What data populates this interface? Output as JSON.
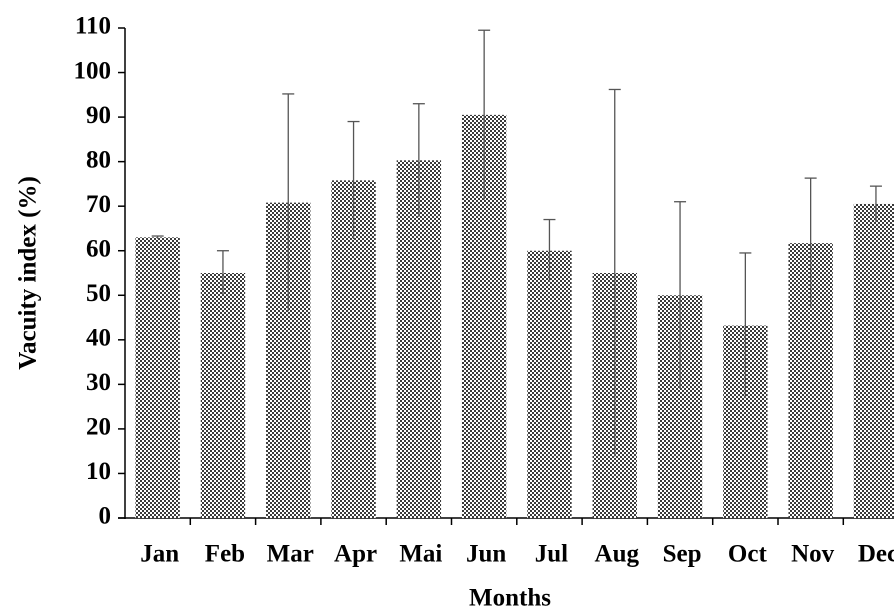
{
  "chart_data": {
    "type": "bar",
    "x_label": "Months",
    "y_label": "Vacuity index (%)",
    "categories": [
      "Jan",
      "Feb",
      "Mar",
      "Apr",
      "Mai",
      "Jun",
      "Jul",
      "Aug",
      "Sep",
      "Oct",
      "Nov",
      "Dec"
    ],
    "values": [
      63,
      55,
      70.8,
      75.8,
      80.3,
      90.5,
      60,
      55,
      50,
      43.2,
      61.7,
      70.5
    ],
    "errors": [
      0.3,
      5,
      24.4,
      13.2,
      12.7,
      19,
      7,
      41.2,
      21,
      16.3,
      14.6,
      4
    ],
    "color": "#3a3a3a",
    "ylim": [
      0,
      110
    ],
    "yticks": [
      0,
      10,
      20,
      30,
      40,
      50,
      60,
      70,
      80,
      90,
      100,
      110
    ],
    "grid": false
  }
}
